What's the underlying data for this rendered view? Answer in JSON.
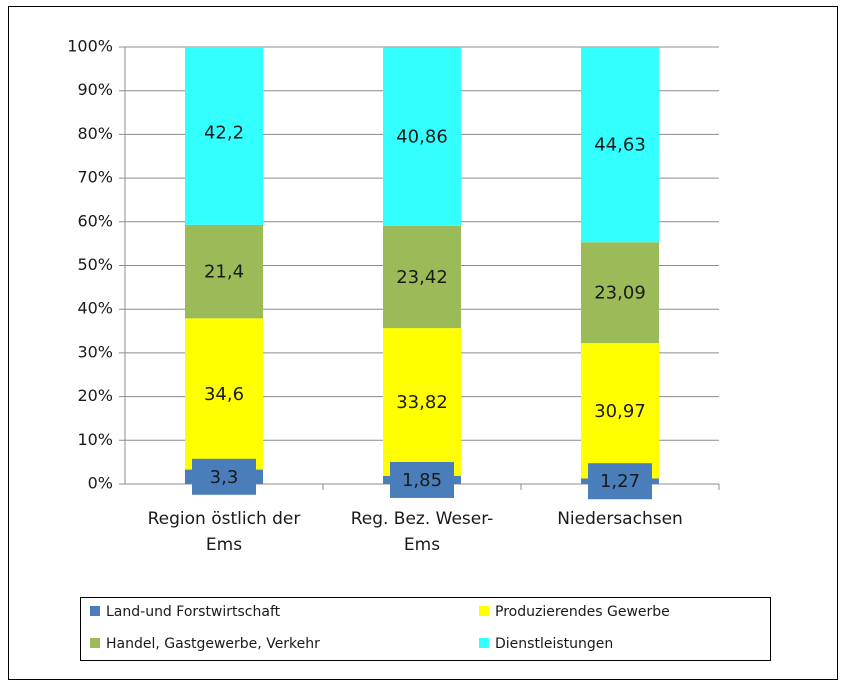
{
  "chart_data": {
    "type": "bar",
    "stacked": true,
    "categories": [
      "Region östlich der Ems",
      "Reg. Bez. Weser-Ems",
      "Niedersachsen"
    ],
    "series": [
      {
        "name": "Land-und Forstwirtschaft",
        "color": "#4a7ebb",
        "values": [
          3.3,
          1.85,
          1.27
        ],
        "value_labels": [
          "3,3",
          "1,85",
          "1,27"
        ]
      },
      {
        "name": "Produzierendes Gewerbe",
        "color": "#ffff00",
        "values": [
          34.6,
          33.82,
          30.97
        ],
        "value_labels": [
          "34,6",
          "33,82",
          "30,97"
        ]
      },
      {
        "name": "Handel, Gastgewerbe, Verkehr",
        "color": "#9bbb59",
        "values": [
          21.4,
          23.42,
          23.09
        ],
        "value_labels": [
          "21,4",
          "23,42",
          "23,09"
        ]
      },
      {
        "name": "Dienstleistungen",
        "color": "#33ffff",
        "values": [
          42.2,
          40.86,
          44.63
        ],
        "value_labels": [
          "42,2",
          "40,86",
          "44,63"
        ]
      }
    ],
    "ylim": [
      0,
      100
    ],
    "yticks": [
      {
        "value": 0,
        "label": "0%"
      },
      {
        "value": 10,
        "label": "10%"
      },
      {
        "value": 20,
        "label": "20%"
      },
      {
        "value": 30,
        "label": "30%"
      },
      {
        "value": 40,
        "label": "40%"
      },
      {
        "value": 50,
        "label": "50%"
      },
      {
        "value": 60,
        "label": "60%"
      },
      {
        "value": 70,
        "label": "70%"
      },
      {
        "value": 80,
        "label": "80%"
      },
      {
        "value": 90,
        "label": "90%"
      },
      {
        "value": 100,
        "label": "100%"
      }
    ],
    "grid": true,
    "legend": "bottom"
  }
}
